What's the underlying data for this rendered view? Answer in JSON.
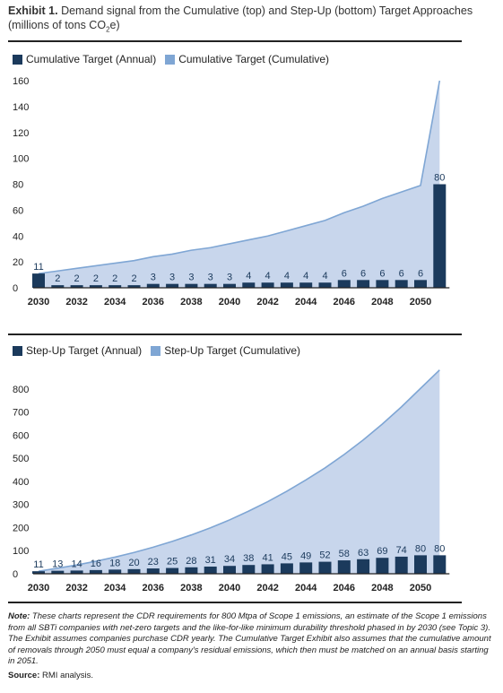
{
  "title": {
    "bold": "Exhibit 1.",
    "text": "Demand signal from the Cumulative (top) and Step-Up (bottom) Target Approaches",
    "unit_prefix": "(millions of tons CO",
    "unit_sub": "2",
    "unit_suffix": "e)"
  },
  "colors": {
    "annual": "#1b3a5c",
    "cumulative_fill": "#c8d6ec",
    "cumulative_line": "#7fa6d4",
    "axis": "#222222"
  },
  "chart_data": [
    {
      "type": "bar",
      "legend": [
        {
          "label": "Cumulative Target (Annual)",
          "color": "#1b3a5c"
        },
        {
          "label": "Cumulative Target (Cumulative)",
          "color": "#7fa6d4"
        }
      ],
      "x": [
        2030,
        2031,
        2032,
        2033,
        2034,
        2035,
        2036,
        2037,
        2038,
        2039,
        2040,
        2041,
        2042,
        2043,
        2044,
        2045,
        2046,
        2047,
        2048,
        2049,
        2050,
        2051
      ],
      "x_tick_labels": [
        "2030",
        "2032",
        "2034",
        "2036",
        "2038",
        "2040",
        "2042",
        "2044",
        "2046",
        "2048",
        "2050"
      ],
      "series": [
        {
          "name": "Cumulative Target (Annual)",
          "chart": "bar",
          "values": [
            11,
            2,
            2,
            2,
            2,
            2,
            3,
            3,
            3,
            3,
            3,
            4,
            4,
            4,
            4,
            4,
            6,
            6,
            6,
            6,
            6,
            80
          ],
          "labels": [
            "11",
            "2",
            "2",
            "2",
            "2",
            "2",
            "3",
            "3",
            "3",
            "3",
            "3",
            "4",
            "4",
            "4",
            "4",
            "4",
            "6",
            "6",
            "6",
            "6",
            "6",
            "80"
          ]
        },
        {
          "name": "Cumulative Target (Cumulative)",
          "chart": "area",
          "values": [
            11,
            13,
            15,
            17,
            19,
            21,
            24,
            26,
            29,
            31,
            34,
            37,
            40,
            44,
            48,
            52,
            58,
            63,
            69,
            74,
            79,
            160
          ]
        }
      ],
      "ylim": [
        0,
        160
      ],
      "y_ticks": [
        0,
        20,
        40,
        60,
        80,
        100,
        120,
        140,
        160
      ],
      "legend_position": "top-left"
    },
    {
      "type": "bar",
      "legend": [
        {
          "label": "Step-Up Target (Annual)",
          "color": "#1b3a5c"
        },
        {
          "label": "Step-Up Target (Cumulative)",
          "color": "#7fa6d4"
        }
      ],
      "x": [
        2030,
        2031,
        2032,
        2033,
        2034,
        2035,
        2036,
        2037,
        2038,
        2039,
        2040,
        2041,
        2042,
        2043,
        2044,
        2045,
        2046,
        2047,
        2048,
        2049,
        2050,
        2051
      ],
      "x_tick_labels": [
        "2030",
        "2032",
        "2034",
        "2036",
        "2038",
        "2040",
        "2042",
        "2044",
        "2046",
        "2048",
        "2050"
      ],
      "series": [
        {
          "name": "Step-Up Target (Annual)",
          "chart": "bar",
          "values": [
            11,
            13,
            14,
            16,
            18,
            20,
            23,
            25,
            28,
            31,
            34,
            38,
            41,
            45,
            49,
            52,
            58,
            63,
            69,
            74,
            80,
            80
          ],
          "labels": [
            "11",
            "13",
            "14",
            "16",
            "18",
            "20",
            "23",
            "25",
            "28",
            "31",
            "34",
            "38",
            "41",
            "45",
            "49",
            "52",
            "58",
            "63",
            "69",
            "74",
            "80",
            "80"
          ]
        },
        {
          "name": "Step-Up Target (Cumulative)",
          "chart": "area",
          "values": [
            11,
            24,
            38,
            54,
            72,
            92,
            115,
            140,
            168,
            199,
            233,
            271,
            312,
            357,
            406,
            458,
            516,
            579,
            648,
            722,
            802,
            882
          ]
        }
      ],
      "ylim": [
        0,
        900
      ],
      "y_ticks": [
        0,
        100,
        200,
        300,
        400,
        500,
        600,
        700,
        800
      ],
      "legend_position": "top-left"
    }
  ],
  "note": {
    "label": "Note:",
    "text": "These charts represent the CDR requirements for 800 Mtpa of Scope 1 emissions, an estimate of the Scope 1 emissions from all SBTi companies with net-zero targets and the like-for-like minimum durability threshold phased in by 2030 (see Topic 3). The Exhibit assumes companies purchase CDR yearly. The Cumulative Target Exhibit also assumes that the cumulative amount of removals through 2050 must equal a company's residual emissions, which then must be matched on an annual basis starting in 2051."
  },
  "source": {
    "label": "Source:",
    "text": "RMI analysis."
  }
}
